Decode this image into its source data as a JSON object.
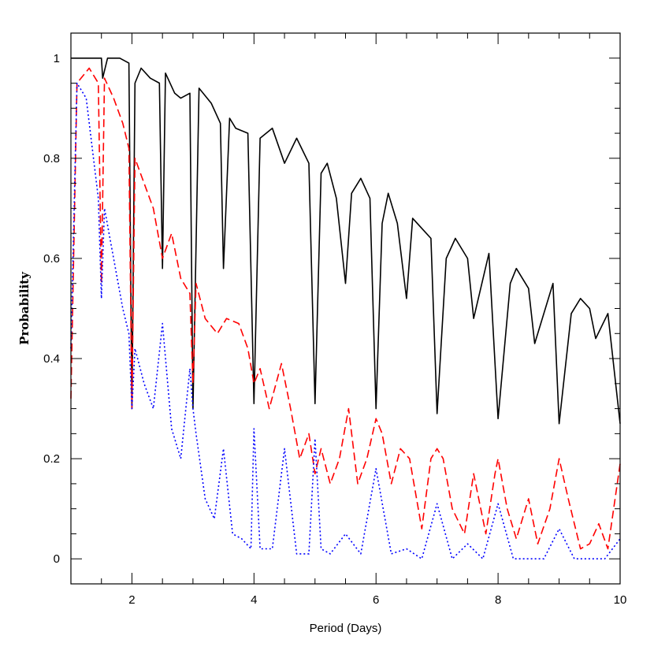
{
  "chart_data": {
    "type": "line",
    "title": "",
    "xlabel": "Period (Days)",
    "ylabel": "Probability",
    "xlim": [
      1,
      10
    ],
    "ylim": [
      -0.05,
      1.05
    ],
    "xticks": [
      2,
      4,
      6,
      8,
      10
    ],
    "xtick_labels": [
      "2",
      "4",
      "6",
      "8",
      "10"
    ],
    "yticks": [
      0,
      0.2,
      0.4,
      0.6,
      0.8,
      1
    ],
    "ytick_labels": [
      "0",
      "0.2",
      "0.4",
      "0.6",
      "0.8",
      "1"
    ],
    "grid": false,
    "legend": "none",
    "series": [
      {
        "color": "#000000",
        "style": "solid",
        "x": [
          1.0,
          1.5,
          1.52,
          1.6,
          1.8,
          1.95,
          2.0,
          2.05,
          2.15,
          2.3,
          2.45,
          2.5,
          2.55,
          2.7,
          2.8,
          2.95,
          3.0,
          3.1,
          3.3,
          3.45,
          3.5,
          3.6,
          3.7,
          3.9,
          4.0,
          4.1,
          4.3,
          4.5,
          4.7,
          4.9,
          5.0,
          5.1,
          5.2,
          5.35,
          5.5,
          5.6,
          5.75,
          5.9,
          6.0,
          6.1,
          6.2,
          6.35,
          6.5,
          6.6,
          6.75,
          6.9,
          7.0,
          7.15,
          7.3,
          7.5,
          7.6,
          7.85,
          8.0,
          8.2,
          8.3,
          8.5,
          8.6,
          8.9,
          9.0,
          9.2,
          9.35,
          9.5,
          9.6,
          9.8,
          10.0
        ],
        "y": [
          1.0,
          1.0,
          0.96,
          1.0,
          1.0,
          0.99,
          0.3,
          0.95,
          0.98,
          0.96,
          0.95,
          0.58,
          0.97,
          0.93,
          0.92,
          0.93,
          0.3,
          0.94,
          0.91,
          0.87,
          0.58,
          0.88,
          0.86,
          0.85,
          0.31,
          0.84,
          0.86,
          0.79,
          0.84,
          0.79,
          0.31,
          0.77,
          0.79,
          0.72,
          0.55,
          0.73,
          0.76,
          0.72,
          0.3,
          0.67,
          0.73,
          0.67,
          0.52,
          0.68,
          0.66,
          0.64,
          0.29,
          0.6,
          0.64,
          0.6,
          0.48,
          0.61,
          0.28,
          0.55,
          0.58,
          0.54,
          0.43,
          0.55,
          0.27,
          0.49,
          0.52,
          0.5,
          0.44,
          0.49,
          0.27
        ]
      },
      {
        "color": "#ff0000",
        "style": "dashed",
        "x": [
          1.0,
          1.1,
          1.3,
          1.45,
          1.5,
          1.55,
          1.7,
          1.85,
          1.95,
          2.0,
          2.05,
          2.2,
          2.35,
          2.5,
          2.65,
          2.8,
          2.95,
          3.0,
          3.05,
          3.2,
          3.4,
          3.55,
          3.75,
          3.9,
          4.0,
          4.1,
          4.25,
          4.45,
          4.6,
          4.75,
          4.9,
          5.0,
          5.1,
          5.25,
          5.4,
          5.55,
          5.7,
          5.85,
          6.0,
          6.1,
          6.25,
          6.4,
          6.55,
          6.75,
          6.9,
          7.0,
          7.1,
          7.25,
          7.45,
          7.6,
          7.8,
          7.95,
          8.0,
          8.15,
          8.3,
          8.5,
          8.65,
          8.85,
          9.0,
          9.15,
          9.35,
          9.5,
          9.65,
          9.8,
          10.0
        ],
        "y": [
          0.32,
          0.95,
          0.98,
          0.95,
          0.55,
          0.96,
          0.92,
          0.87,
          0.82,
          0.3,
          0.8,
          0.75,
          0.7,
          0.6,
          0.65,
          0.56,
          0.53,
          0.35,
          0.55,
          0.48,
          0.45,
          0.48,
          0.47,
          0.42,
          0.35,
          0.38,
          0.3,
          0.39,
          0.3,
          0.2,
          0.25,
          0.17,
          0.22,
          0.15,
          0.2,
          0.3,
          0.15,
          0.2,
          0.28,
          0.25,
          0.15,
          0.22,
          0.2,
          0.06,
          0.2,
          0.22,
          0.2,
          0.1,
          0.05,
          0.17,
          0.05,
          0.17,
          0.2,
          0.1,
          0.04,
          0.12,
          0.03,
          0.1,
          0.2,
          0.12,
          0.02,
          0.03,
          0.07,
          0.02,
          0.19
        ]
      },
      {
        "color": "#0000ff",
        "style": "dotted",
        "x": [
          1.0,
          1.1,
          1.25,
          1.35,
          1.45,
          1.5,
          1.55,
          1.7,
          1.85,
          1.95,
          2.0,
          2.05,
          2.2,
          2.35,
          2.5,
          2.65,
          2.8,
          2.95,
          3.0,
          3.05,
          3.2,
          3.35,
          3.5,
          3.65,
          3.8,
          3.95,
          4.0,
          4.1,
          4.3,
          4.5,
          4.7,
          4.9,
          5.0,
          5.1,
          5.25,
          5.5,
          5.75,
          6.0,
          6.25,
          6.5,
          6.75,
          7.0,
          7.25,
          7.5,
          7.75,
          8.0,
          8.25,
          8.5,
          8.75,
          9.0,
          9.25,
          9.5,
          9.75,
          10.0
        ],
        "y": [
          0.42,
          0.95,
          0.92,
          0.82,
          0.72,
          0.52,
          0.7,
          0.6,
          0.5,
          0.45,
          0.3,
          0.42,
          0.35,
          0.3,
          0.47,
          0.26,
          0.2,
          0.38,
          0.3,
          0.25,
          0.12,
          0.08,
          0.22,
          0.05,
          0.04,
          0.02,
          0.26,
          0.02,
          0.02,
          0.22,
          0.01,
          0.01,
          0.24,
          0.02,
          0.01,
          0.05,
          0.01,
          0.18,
          0.01,
          0.02,
          0.0,
          0.11,
          0.0,
          0.03,
          0.0,
          0.11,
          0.0,
          0.0,
          0.0,
          0.06,
          0.0,
          0.0,
          0.0,
          0.04
        ]
      }
    ]
  }
}
